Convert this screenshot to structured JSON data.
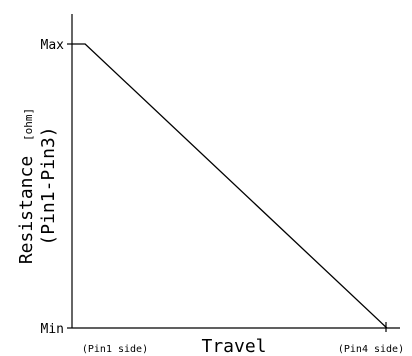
{
  "chart_data": {
    "type": "line",
    "xlabel": "Travel",
    "ylabel_line1": "Resistance",
    "ylabel_unit": "[ohm]",
    "ylabel_line2": "(Pin1-Pin3)",
    "x_start_label": "(Pin1 side)",
    "x_end_label": "(Pin4 side)",
    "y_max_label": "Max",
    "y_min_label": "Min",
    "xlim": [
      0,
      1
    ],
    "ylim": [
      0,
      1
    ],
    "series": [
      {
        "x": [
          0.0,
          0.04,
          0.96
        ],
        "y": [
          1.0,
          1.0,
          0.0
        ]
      }
    ],
    "grid": false
  }
}
